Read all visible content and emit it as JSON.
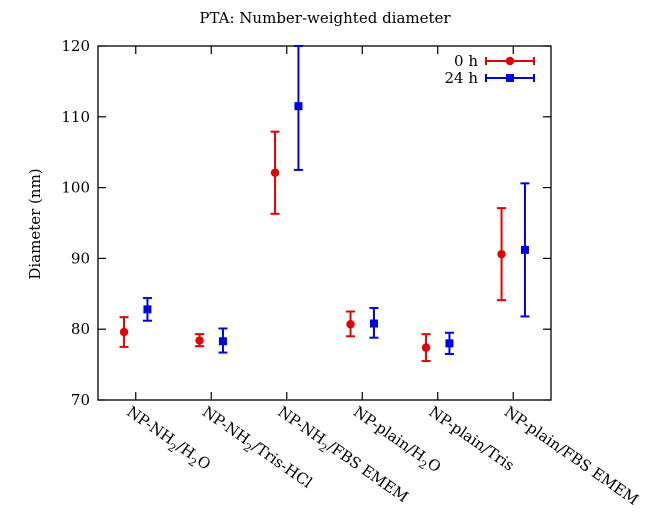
{
  "chart_data": {
    "type": "scatter",
    "title": "PTA: Number-weighted diameter",
    "xlabel": "",
    "ylabel": "Diameter (nm)",
    "ylim": [
      70,
      120
    ],
    "yticks": [
      70,
      80,
      90,
      100,
      110,
      120
    ],
    "grid": false,
    "legend_position": "top-right",
    "categories": [
      {
        "base": "NP-NH",
        "sub1": "2",
        "mid": "/H",
        "sub2": "2",
        "tail": "O"
      },
      {
        "base": "NP-NH",
        "sub1": "2",
        "mid": "/Tris-HCl",
        "sub2": "",
        "tail": ""
      },
      {
        "base": "NP-NH",
        "sub1": "2",
        "mid": "/FBS EMEM",
        "sub2": "",
        "tail": ""
      },
      {
        "base": "NP-plain/H",
        "sub1": "2",
        "mid": "O",
        "sub2": "",
        "tail": ""
      },
      {
        "base": "NP-plain/Tris",
        "sub1": "",
        "mid": "",
        "sub2": "",
        "tail": ""
      },
      {
        "base": "NP-plain/FBS EMEM",
        "sub1": "",
        "mid": "",
        "sub2": "",
        "tail": ""
      }
    ],
    "series": [
      {
        "name": "0 h",
        "color": "#e60000",
        "marker": "circle",
        "values": [
          79.6,
          78.4,
          102.1,
          80.7,
          77.4,
          90.6
        ],
        "err_low": [
          77.5,
          77.6,
          96.3,
          79.0,
          75.5,
          84.1
        ],
        "err_high": [
          81.7,
          79.3,
          107.9,
          82.5,
          79.3,
          97.1
        ]
      },
      {
        "name": "24 h",
        "color": "#0000e6",
        "marker": "square",
        "values": [
          82.8,
          78.3,
          111.5,
          80.8,
          78.0,
          91.2
        ],
        "err_low": [
          81.2,
          76.7,
          102.5,
          78.8,
          76.5,
          81.8
        ],
        "err_high": [
          84.4,
          80.1,
          120.0,
          83.0,
          79.5,
          100.6
        ]
      }
    ]
  }
}
